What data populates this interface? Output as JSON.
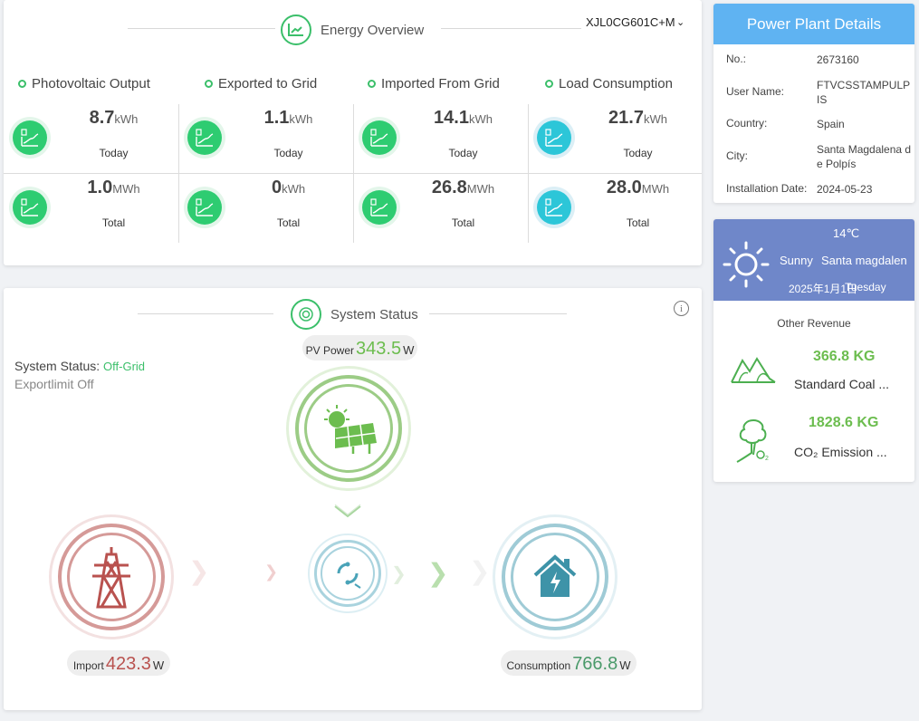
{
  "energy": {
    "title": "Energy Overview",
    "device": "XJL0CG601C+M",
    "columns": [
      {
        "title": "Photovoltaic Output",
        "today_value": "8.7",
        "today_unit": "kWh",
        "total_value": "1.0",
        "total_unit": "MWh",
        "icon": "pv-chart-icon"
      },
      {
        "title": "Exported to Grid",
        "today_value": "1.1",
        "today_unit": "kWh",
        "total_value": "0",
        "total_unit": "kWh",
        "icon": "export-chart-icon"
      },
      {
        "title": "Imported From Grid",
        "today_value": "14.1",
        "today_unit": "kWh",
        "total_value": "26.8",
        "total_unit": "MWh",
        "icon": "import-chart-icon"
      },
      {
        "title": "Load Consumption",
        "today_value": "21.7",
        "today_unit": "kWh",
        "total_value": "28.0",
        "total_unit": "MWh",
        "icon": "load-chart-icon"
      }
    ],
    "today_label": "Today",
    "total_label": "Total",
    "colors": {
      "green": "#2ecc71",
      "cyan": "#2cc6d8"
    }
  },
  "status": {
    "title": "System Status",
    "status_label": "System Status: ",
    "status_value": "Off-Grid",
    "exportlimit": "Exportlimit Off",
    "pv_label": "PV Power",
    "pv_value": "343.5",
    "pv_unit": "W",
    "import_label": "Import",
    "import_value": "423.3",
    "import_unit": "W",
    "consumption_label": "Consumption",
    "consumption_value": "766.8",
    "consumption_unit": "W",
    "info": "i",
    "colors": {
      "pv": "#6cbd4f",
      "import": "#b9524f",
      "consumption": "#4a9a6a"
    }
  },
  "plant": {
    "title": "Power Plant Details",
    "rows": [
      {
        "k": "No.:",
        "v": "2673160"
      },
      {
        "k": "User Name:",
        "v": "FTVCSSTAMPULPIS"
      },
      {
        "k": "Country:",
        "v": "Spain"
      },
      {
        "k": "City:",
        "v": "Santa Magdalena de Polpís"
      },
      {
        "k": "Installation Date:",
        "v": "2024-05-23"
      }
    ]
  },
  "weather": {
    "temp": "14℃",
    "condition": "Sunny",
    "city": "Santa magdalen",
    "date": "2025年1月1日",
    "day": "Tuesday",
    "other_revenue": "Other Revenue",
    "coal_value": "366.8 KG",
    "coal_label": "Standard Coal ...",
    "co2_value": "1828.6 KG",
    "co2_label": "CO₂ Emission ..."
  }
}
